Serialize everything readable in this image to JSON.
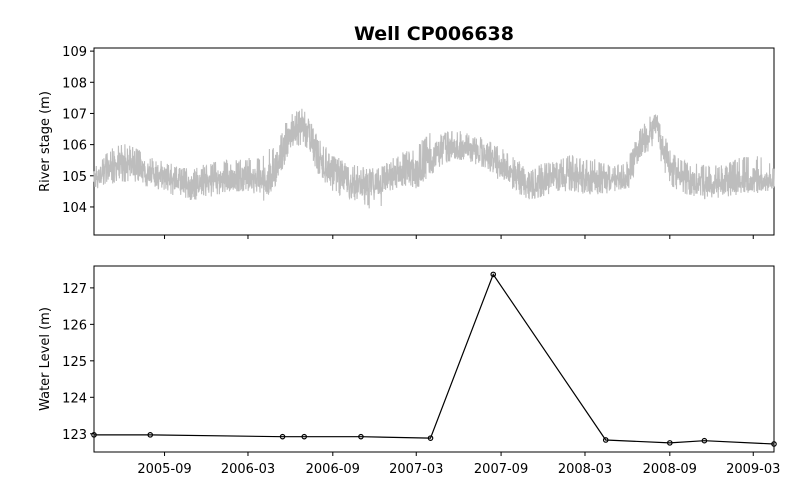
{
  "figure": {
    "title": "Well CP006638"
  },
  "chart_data": [
    {
      "type": "line",
      "ylabel": "River stage (m)",
      "xlabel": "",
      "xlim": [
        "2005-04-01",
        "2009-04-15"
      ],
      "ylim": [
        103.1,
        109.1
      ],
      "yticks": [
        104,
        105,
        106,
        107,
        108,
        109
      ],
      "xtick_labels_visible": false,
      "grid": false,
      "series": [
        {
          "color": "#bdbdbd",
          "approximate_envelope": true,
          "x": [
            "2005-04-01",
            "2005-05-01",
            "2005-06-01",
            "2005-07-01",
            "2005-08-01",
            "2005-09-01",
            "2005-10-01",
            "2005-11-01",
            "2005-12-01",
            "2006-01-01",
            "2006-02-01",
            "2006-03-01",
            "2006-04-01",
            "2006-05-01",
            "2006-06-01",
            "2006-07-01",
            "2006-08-01",
            "2006-09-01",
            "2006-10-01",
            "2006-11-01",
            "2006-12-01",
            "2007-01-01",
            "2007-02-01",
            "2007-03-01",
            "2007-04-01",
            "2007-05-01",
            "2007-06-01",
            "2007-07-01",
            "2007-08-01",
            "2007-09-01",
            "2007-10-01",
            "2007-11-01",
            "2007-12-01",
            "2008-01-01",
            "2008-02-01",
            "2008-03-01",
            "2008-04-01",
            "2008-05-01",
            "2008-06-01",
            "2008-07-01",
            "2008-08-01",
            "2008-09-01",
            "2008-10-01",
            "2008-11-01",
            "2008-12-01",
            "2009-01-01",
            "2009-02-01",
            "2009-03-01",
            "2009-04-01",
            "2009-04-15"
          ],
          "values": [
            104.9,
            105.2,
            105.4,
            105.3,
            105.1,
            105.0,
            104.8,
            104.7,
            104.8,
            104.9,
            104.9,
            105.0,
            104.8,
            105.3,
            106.4,
            106.6,
            105.5,
            105.1,
            104.8,
            104.7,
            104.7,
            104.9,
            105.2,
            105.1,
            105.6,
            105.9,
            105.9,
            105.8,
            105.7,
            105.3,
            105.0,
            104.7,
            104.8,
            105.0,
            105.1,
            105.0,
            104.9,
            104.8,
            104.9,
            106.0,
            106.6,
            105.3,
            104.9,
            104.8,
            104.7,
            104.8,
            104.8,
            104.9,
            104.8,
            104.8
          ],
          "range_low": [
            104.5,
            104.7,
            104.8,
            104.8,
            104.6,
            104.5,
            104.3,
            104.2,
            104.3,
            104.4,
            104.5,
            104.5,
            104.1,
            104.7,
            105.8,
            106.0,
            105.0,
            104.5,
            104.2,
            104.2,
            103.7,
            104.4,
            104.6,
            104.5,
            105.0,
            105.4,
            105.5,
            105.4,
            105.2,
            104.8,
            104.5,
            104.2,
            104.3,
            104.5,
            104.5,
            104.4,
            104.4,
            104.4,
            104.5,
            105.6,
            105.9,
            104.7,
            104.4,
            104.3,
            104.2,
            104.3,
            104.4,
            104.4,
            104.5,
            104.6
          ],
          "range_high": [
            105.3,
            105.8,
            106.1,
            105.9,
            105.6,
            105.5,
            105.3,
            105.2,
            105.4,
            105.5,
            105.5,
            105.6,
            105.6,
            106.1,
            107.0,
            107.2,
            106.2,
            105.7,
            105.4,
            105.3,
            105.3,
            105.5,
            105.8,
            105.9,
            106.5,
            106.4,
            106.5,
            106.3,
            106.2,
            105.9,
            105.6,
            105.2,
            105.4,
            105.5,
            105.7,
            105.6,
            105.5,
            105.3,
            105.5,
            106.6,
            107.1,
            105.9,
            105.5,
            105.4,
            105.3,
            105.4,
            105.6,
            105.7,
            105.5,
            105.3
          ]
        }
      ]
    },
    {
      "type": "line",
      "ylabel": "Water Level (m)",
      "xlabel": "",
      "xlim": [
        "2005-04-01",
        "2009-04-15"
      ],
      "ylim": [
        122.5,
        127.6
      ],
      "yticks": [
        123,
        124,
        125,
        126,
        127
      ],
      "xticks": [
        "2005-09",
        "2006-03",
        "2006-09",
        "2007-03",
        "2007-09",
        "2008-03",
        "2008-09",
        "2009-03"
      ],
      "grid": false,
      "series": [
        {
          "color": "#000000",
          "marker": "circle",
          "x": [
            "2005-04-01",
            "2005-08-01",
            "2006-05-15",
            "2006-07-01",
            "2006-11-01",
            "2007-04-01",
            "2007-08-15",
            "2008-04-15",
            "2008-09-01",
            "2008-11-15",
            "2009-04-15"
          ],
          "values": [
            122.97,
            122.97,
            122.92,
            122.92,
            122.92,
            122.88,
            127.37,
            122.83,
            122.75,
            122.81,
            122.72
          ]
        }
      ]
    }
  ]
}
